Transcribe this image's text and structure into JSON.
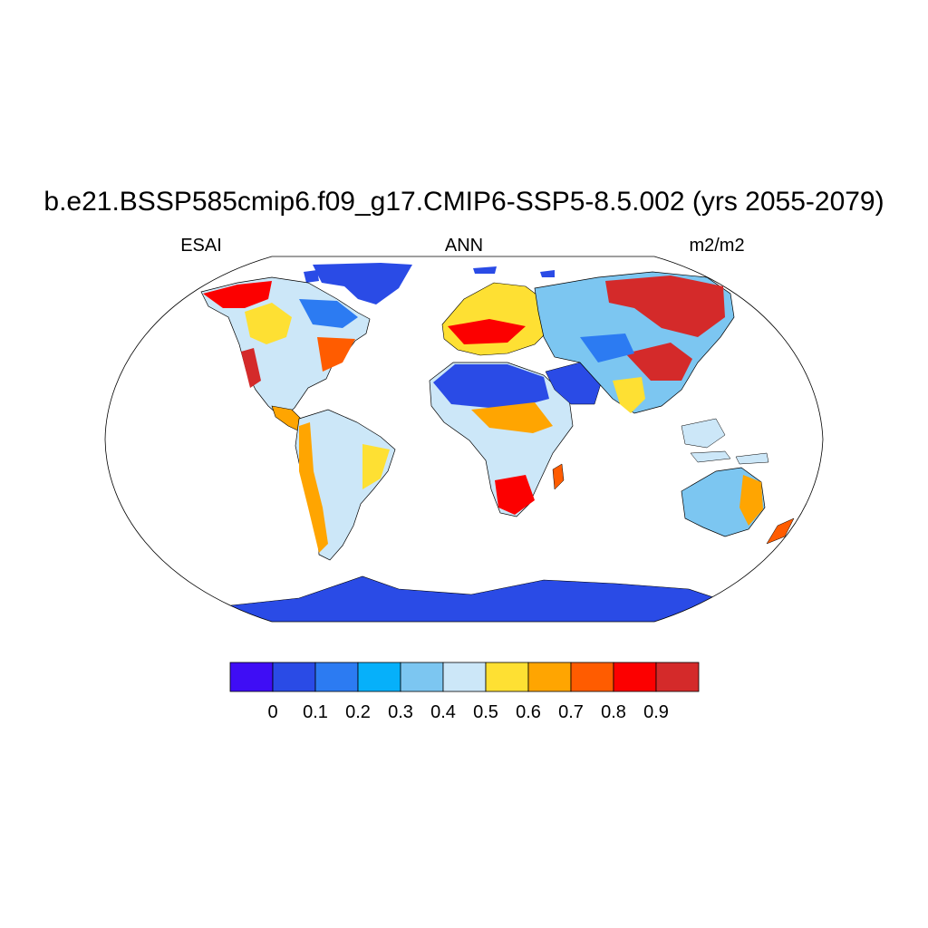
{
  "title": "b.e21.BSSP585cmip6.f09_g17.CMIP6-SSP5-8.5.002 (yrs 2055-2079)",
  "left_label": "ESAI",
  "center_label": "ANN",
  "right_label": "m2/m2",
  "projection": "Robinson",
  "colorbar": {
    "colors": [
      "#3f0df5",
      "#2a4be6",
      "#2c7bf2",
      "#06b0fa",
      "#7cc6f1",
      "#cce7f8",
      "#fee033",
      "#ffa501",
      "#ff5c00",
      "#fc0000",
      "#d42a2a"
    ],
    "tick_labels": [
      "0",
      "0.1",
      "0.2",
      "0.3",
      "0.4",
      "0.5",
      "0.6",
      "0.7",
      "0.8",
      "0.9"
    ]
  },
  "regions": [
    {
      "name": "Greenland",
      "level": 1
    },
    {
      "name": "Sahara",
      "level": 1
    },
    {
      "name": "Arabia",
      "level": 1
    },
    {
      "name": "Antarctica",
      "level": 1
    },
    {
      "name": "Siberia",
      "level": 10
    },
    {
      "name": "Amazon",
      "level": 5
    },
    {
      "name": "Australia interior",
      "level": 4
    }
  ]
}
